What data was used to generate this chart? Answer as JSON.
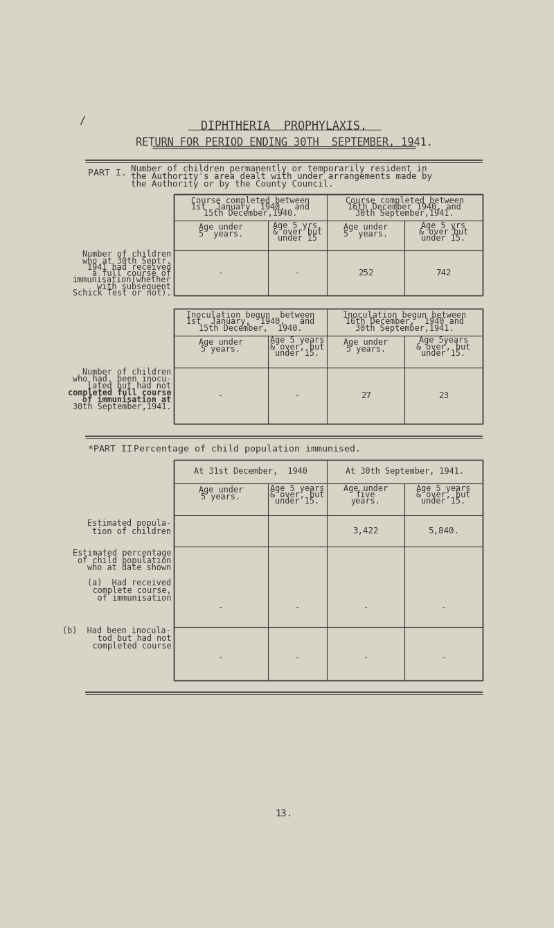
{
  "bg_color": "#d8d4c8",
  "text_color": "#3a3530",
  "title1": "DIPHTHERIA  PROPHYLAXIS.",
  "title2": "RETURN FOR PERIOD ENDING 30TH  SEPTEMBER, 1941.",
  "part1_label": "PART I.",
  "part1_lines": [
    "Number of children permanently or temporarily resident in",
    "the Authority's area dealt with under arrangements made by",
    "the Authority or by the County Council."
  ],
  "part2_label": "*PART II",
  "part2_text": "Percentage of child population immunised.",
  "page_number": "13.",
  "t1_header_left": [
    "Course completed between",
    "1st  January  1940,  and",
    "15th December,1940."
  ],
  "t1_header_right": [
    "Course completed between",
    "16th December 1940, and",
    "30th September,1941."
  ],
  "t1_sub_col1": [
    "Age under",
    "5  years."
  ],
  "t1_sub_col2": [
    "Age 5 yrs.",
    "& over but",
    "under 15"
  ],
  "t1_sub_col3": [
    "Age under",
    "5  years."
  ],
  "t1_sub_col4": [
    "Age 5 yrs",
    "& over but",
    "under 15."
  ],
  "t1_row_label": [
    "Number of children",
    "who at 30th Septr.",
    "1941 had received",
    "a full course of",
    "immunisation(whether",
    "with subsequent",
    "Schick Test or not)."
  ],
  "t1_data": [
    "-",
    "-",
    "252",
    "742"
  ],
  "t2_header_left": [
    "Inoculation begun  between",
    "1st  January,  1940,   and",
    "15th December,  1940."
  ],
  "t2_header_right": [
    "Inoculation begun between",
    "16th December,  1940 and",
    "30th September,1941."
  ],
  "t2_sub_col1": [
    "Age under",
    "5 years."
  ],
  "t2_sub_col2": [
    "Age 5 years",
    "& over, but",
    "under 15."
  ],
  "t2_sub_col3": [
    "Age under",
    "5 years."
  ],
  "t2_sub_col4": [
    "Age 5years",
    "& over, but",
    "under 15."
  ],
  "t2_row_label": [
    "Number of children",
    "who had. been inocu-",
    "lated but had not",
    "completed full course",
    "of immunisation at",
    "30th September,1941."
  ],
  "t2_row_label_bold": [
    false,
    false,
    false,
    true,
    true,
    false
  ],
  "t2_data": [
    "-",
    "-",
    "27",
    "23"
  ],
  "t3_header_left": "At 31st December,  1940",
  "t3_header_right": "At 30th September, 1941.",
  "t3_sub_col1": [
    "Age under",
    "5 years."
  ],
  "t3_sub_col2": [
    "Age 5 years",
    "& over, but",
    "under 15."
  ],
  "t3_sub_col3": [
    "Age under",
    "five",
    "years."
  ],
  "t3_sub_col4": [
    "Age 5 years",
    "& over, but",
    "under 15."
  ],
  "t3_pop_label": [
    "Estimated popula-",
    "tion of children"
  ],
  "t3_pop_data": [
    "",
    "",
    "3,422",
    "5,840."
  ],
  "t3_pct_label": [
    "Estimated percentage",
    "of child population",
    "who at date shown"
  ],
  "t3_a_label": [
    "(a)  Had received",
    "     complete course,",
    "     of immunisation"
  ],
  "t3_a_data": [
    "-",
    "-",
    "-",
    "-"
  ],
  "t3_b_label": [
    "(b)  Had been inocula-",
    "     tod but had not",
    "     completed course"
  ],
  "t3_b_data": [
    "-",
    "-",
    "-",
    "-"
  ],
  "tick_mark": "/"
}
